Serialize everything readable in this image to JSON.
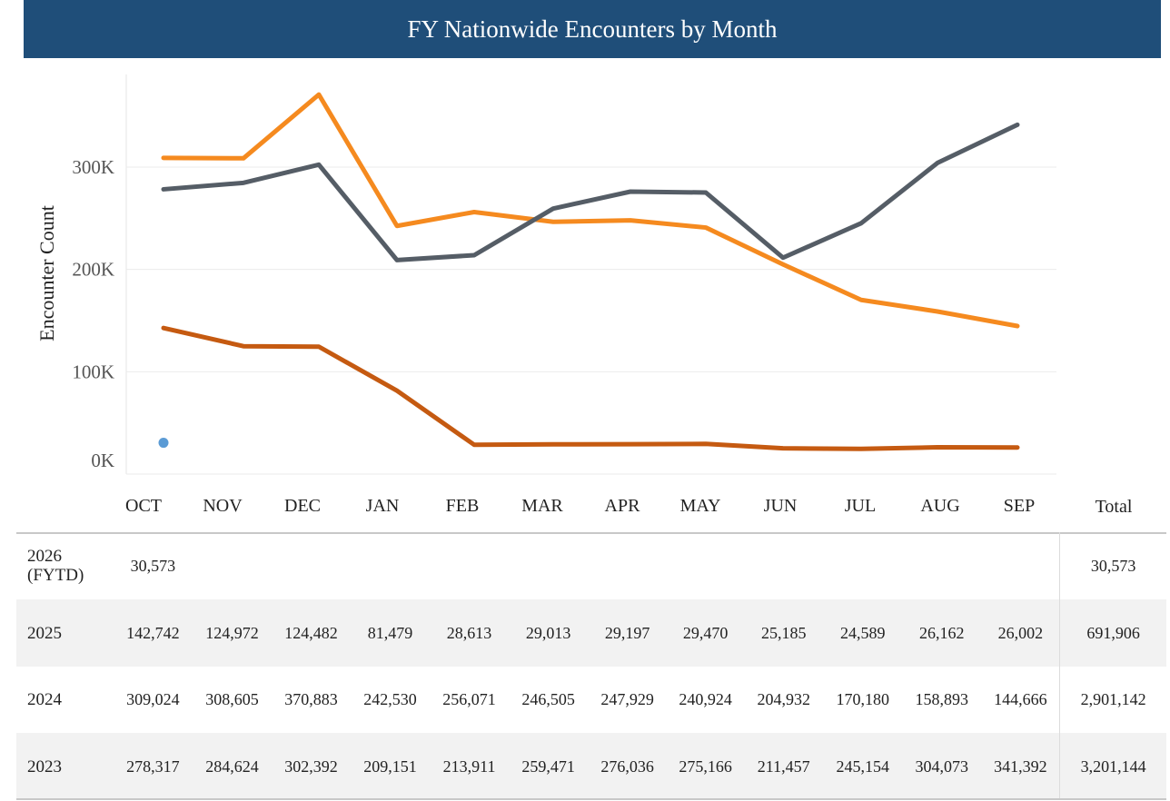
{
  "title": "FY Nationwide Encounters by Month",
  "chart_data": {
    "type": "line",
    "ylabel": "Encounter Count",
    "yticks": [
      "0K",
      "100K",
      "200K",
      "300K"
    ],
    "ytick_values": [
      0,
      100000,
      200000,
      300000
    ],
    "ylim": [
      -10000,
      380000
    ],
    "grid": true,
    "categories": [
      "OCT",
      "NOV",
      "DEC",
      "JAN",
      "FEB",
      "MAR",
      "APR",
      "MAY",
      "JUN",
      "JUL",
      "AUG",
      "SEP"
    ],
    "total_label": "Total",
    "series": [
      {
        "year": "2026\n(FYTD)",
        "color": "#5b9bd5",
        "values": [
          30573,
          null,
          null,
          null,
          null,
          null,
          null,
          null,
          null,
          null,
          null,
          null
        ],
        "total": "30,573",
        "display": [
          "30,573",
          "",
          "",
          "",
          "",
          "",
          "",
          "",
          "",
          "",
          "",
          ""
        ]
      },
      {
        "year": "2025",
        "color": "#c55a11",
        "values": [
          142742,
          124972,
          124482,
          81479,
          28613,
          29013,
          29197,
          29470,
          25185,
          24589,
          26162,
          26002
        ],
        "total": "691,906",
        "display": [
          "142,742",
          "124,972",
          "124,482",
          "81,479",
          "28,613",
          "29,013",
          "29,197",
          "29,470",
          "25,185",
          "24,589",
          "26,162",
          "26,002"
        ]
      },
      {
        "year": "2024",
        "color": "#f58a1f",
        "values": [
          309024,
          308605,
          370883,
          242530,
          256071,
          246505,
          247929,
          240924,
          204932,
          170180,
          158893,
          144666
        ],
        "total": "2,901,142",
        "display": [
          "309,024",
          "308,605",
          "370,883",
          "242,530",
          "256,071",
          "246,505",
          "247,929",
          "240,924",
          "204,932",
          "170,180",
          "158,893",
          "144,666"
        ]
      },
      {
        "year": "2023",
        "color": "#555d66",
        "values": [
          278317,
          284624,
          302392,
          209151,
          213911,
          259471,
          276036,
          275166,
          211457,
          245154,
          304073,
          341392
        ],
        "total": "3,201,144",
        "display": [
          "278,317",
          "284,624",
          "302,392",
          "209,151",
          "213,911",
          "259,471",
          "276,036",
          "275,166",
          "211,457",
          "245,154",
          "304,073",
          "341,392"
        ]
      }
    ]
  }
}
